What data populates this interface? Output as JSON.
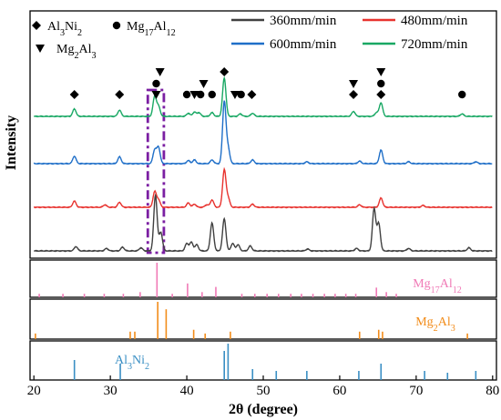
{
  "chart_data": {
    "type": "line",
    "xlabel": "2θ (degree)",
    "ylabel": "Intensity",
    "xlim": [
      19.5,
      80.5
    ],
    "x_ticks": [
      20,
      30,
      40,
      50,
      60,
      70,
      80
    ],
    "x_tick_labels": [
      "20",
      "30",
      "40",
      "50",
      "60",
      "70",
      "80"
    ],
    "legend": {
      "placement": "top-right",
      "entries": [
        {
          "label": "360mm/min",
          "color": "#404040"
        },
        {
          "label": "480mm/min",
          "color": "#e8332f"
        },
        {
          "label": "600mm/min",
          "color": "#1f6fc8"
        },
        {
          "label": "720mm/min",
          "color": "#19a864"
        }
      ]
    },
    "phase_legend": [
      {
        "symbol": "diamond",
        "text_parts": [
          [
            "Al",
            ""
          ],
          [
            "3",
            "sub"
          ],
          [
            "Ni",
            ""
          ],
          [
            "2",
            "sub"
          ]
        ]
      },
      {
        "symbol": "circle",
        "text_parts": [
          [
            "Mg",
            ""
          ],
          [
            "17",
            "sub"
          ],
          [
            "Al",
            ""
          ],
          [
            "12",
            "sub"
          ]
        ]
      },
      {
        "symbol": "triangle",
        "text_parts": [
          [
            "Mg",
            ""
          ],
          [
            "2",
            "sub"
          ],
          [
            "Al",
            ""
          ],
          [
            "3",
            "sub"
          ]
        ]
      }
    ],
    "series": [
      {
        "name": "720mm/min",
        "color": "#19a864",
        "peaks": [
          [
            25.3,
            0.12
          ],
          [
            31.2,
            0.1
          ],
          [
            35.8,
            0.32
          ],
          [
            36.3,
            0.16
          ],
          [
            40.2,
            0.05
          ],
          [
            41.0,
            0.07
          ],
          [
            41.6,
            0.06
          ],
          [
            43.3,
            0.06
          ],
          [
            44.9,
            0.62
          ],
          [
            47.0,
            0.04
          ],
          [
            48.6,
            0.05
          ],
          [
            61.8,
            0.08
          ],
          [
            64.8,
            0.06
          ],
          [
            65.4,
            0.22
          ],
          [
            76.0,
            0.04
          ]
        ]
      },
      {
        "name": "600mm/min",
        "color": "#1f6fc8",
        "peaks": [
          [
            25.3,
            0.12
          ],
          [
            31.2,
            0.11
          ],
          [
            35.8,
            0.22
          ],
          [
            36.3,
            0.26
          ],
          [
            40.2,
            0.05
          ],
          [
            41.0,
            0.06
          ],
          [
            43.3,
            0.06
          ],
          [
            44.9,
            1.0
          ],
          [
            45.4,
            0.25
          ],
          [
            48.6,
            0.06
          ],
          [
            55.7,
            0.03
          ],
          [
            62.6,
            0.04
          ],
          [
            65.4,
            0.22
          ],
          [
            69.0,
            0.03
          ],
          [
            77.8,
            0.03
          ]
        ]
      },
      {
        "name": "480mm/min",
        "color": "#e8332f",
        "peaks": [
          [
            25.3,
            0.1
          ],
          [
            29.3,
            0.04
          ],
          [
            31.2,
            0.08
          ],
          [
            35.8,
            0.25
          ],
          [
            36.3,
            0.12
          ],
          [
            40.2,
            0.07
          ],
          [
            41.0,
            0.05
          ],
          [
            42.6,
            0.04
          ],
          [
            43.3,
            0.12
          ],
          [
            44.9,
            0.6
          ],
          [
            45.4,
            0.15
          ],
          [
            48.6,
            0.05
          ],
          [
            62.6,
            0.04
          ],
          [
            65.4,
            0.15
          ],
          [
            70.9,
            0.03
          ]
        ]
      },
      {
        "name": "360mm/min",
        "color": "#404040",
        "peaks": [
          [
            25.5,
            0.07
          ],
          [
            29.5,
            0.04
          ],
          [
            31.6,
            0.06
          ],
          [
            34.0,
            0.05
          ],
          [
            35.9,
            0.9
          ],
          [
            36.6,
            0.3
          ],
          [
            40.0,
            0.12
          ],
          [
            40.6,
            0.14
          ],
          [
            41.3,
            0.1
          ],
          [
            43.3,
            0.45
          ],
          [
            44.9,
            0.52
          ],
          [
            46.0,
            0.12
          ],
          [
            46.7,
            0.1
          ],
          [
            48.3,
            0.08
          ],
          [
            55.8,
            0.03
          ],
          [
            62.2,
            0.04
          ],
          [
            64.5,
            0.68
          ],
          [
            65.1,
            0.44
          ],
          [
            69.0,
            0.04
          ],
          [
            76.9,
            0.05
          ]
        ]
      }
    ],
    "markers": [
      {
        "symbol": "diamond",
        "x": 25.3
      },
      {
        "symbol": "diamond",
        "x": 31.2
      },
      {
        "symbol": "triangle",
        "x": 36.0,
        "row": 0
      },
      {
        "symbol": "circle",
        "x": 36.0,
        "row": 1
      },
      {
        "symbol": "triangle",
        "x": 36.5,
        "row": 2
      },
      {
        "symbol": "circle",
        "x": 40.0
      },
      {
        "symbol": "triangle",
        "x": 41.0
      },
      {
        "symbol": "circle",
        "x": 41.8
      },
      {
        "symbol": "triangle",
        "x": 42.2,
        "row": 1
      },
      {
        "symbol": "circle",
        "x": 43.3
      },
      {
        "symbol": "diamond",
        "x": 44.9,
        "row": 2
      },
      {
        "symbol": "triangle",
        "x": 46.3
      },
      {
        "symbol": "circle",
        "x": 47.1
      },
      {
        "symbol": "diamond",
        "x": 48.5
      },
      {
        "symbol": "triangle",
        "x": 61.8,
        "row": 1
      },
      {
        "symbol": "diamond",
        "x": 61.8
      },
      {
        "symbol": "triangle",
        "x": 65.4,
        "row": 2
      },
      {
        "symbol": "circle",
        "x": 65.4,
        "row": 1
      },
      {
        "symbol": "diamond",
        "x": 65.4
      },
      {
        "symbol": "circle",
        "x": 76.0
      }
    ],
    "highlight_box": {
      "x_range": [
        34.9,
        37.0
      ],
      "color": "#7b1fa2"
    },
    "reference_panels": [
      {
        "label_parts": [
          [
            "Mg",
            ""
          ],
          [
            "17",
            "sub"
          ],
          [
            "Al",
            ""
          ],
          [
            "12",
            "sub"
          ]
        ],
        "color": "#f07ab6",
        "sticks": [
          [
            20.7,
            0.1
          ],
          [
            23.8,
            0.1
          ],
          [
            26.6,
            0.1
          ],
          [
            29.2,
            0.1
          ],
          [
            31.7,
            0.1
          ],
          [
            33.9,
            0.15
          ],
          [
            36.1,
            1.0
          ],
          [
            38.1,
            0.1
          ],
          [
            40.1,
            0.4
          ],
          [
            42.0,
            0.15
          ],
          [
            43.8,
            0.3
          ],
          [
            47.2,
            0.1
          ],
          [
            48.9,
            0.1
          ],
          [
            50.5,
            0.1
          ],
          [
            52.0,
            0.1
          ],
          [
            53.6,
            0.1
          ],
          [
            55.0,
            0.1
          ],
          [
            56.5,
            0.1
          ],
          [
            58.0,
            0.1
          ],
          [
            59.4,
            0.1
          ],
          [
            60.8,
            0.1
          ],
          [
            62.1,
            0.1
          ],
          [
            64.8,
            0.28
          ],
          [
            66.1,
            0.15
          ],
          [
            67.4,
            0.1
          ]
        ]
      },
      {
        "label_parts": [
          [
            "Mg",
            ""
          ],
          [
            "2",
            "sub"
          ],
          [
            "Al",
            ""
          ],
          [
            "3",
            "sub"
          ]
        ],
        "color": "#f28c1a",
        "sticks": [
          [
            20.2,
            0.15
          ],
          [
            32.6,
            0.2
          ],
          [
            33.2,
            0.2
          ],
          [
            36.2,
            1.0
          ],
          [
            37.3,
            0.8
          ],
          [
            40.9,
            0.25
          ],
          [
            42.4,
            0.15
          ],
          [
            45.7,
            0.2
          ],
          [
            62.6,
            0.2
          ],
          [
            65.1,
            0.25
          ],
          [
            65.6,
            0.2
          ],
          [
            76.7,
            0.15
          ]
        ]
      },
      {
        "label_parts": [
          [
            "Al",
            ""
          ],
          [
            "3",
            "sub"
          ],
          [
            "Ni",
            ""
          ],
          [
            "2",
            "sub"
          ]
        ],
        "color": "#3a8fc4",
        "sticks": [
          [
            25.3,
            0.55
          ],
          [
            31.3,
            0.45
          ],
          [
            44.9,
            0.8
          ],
          [
            45.4,
            1.0
          ],
          [
            48.6,
            0.3
          ],
          [
            51.7,
            0.25
          ],
          [
            55.7,
            0.25
          ],
          [
            62.5,
            0.25
          ],
          [
            65.4,
            0.45
          ],
          [
            71.1,
            0.25
          ],
          [
            74.1,
            0.2
          ],
          [
            77.8,
            0.25
          ]
        ]
      }
    ]
  }
}
